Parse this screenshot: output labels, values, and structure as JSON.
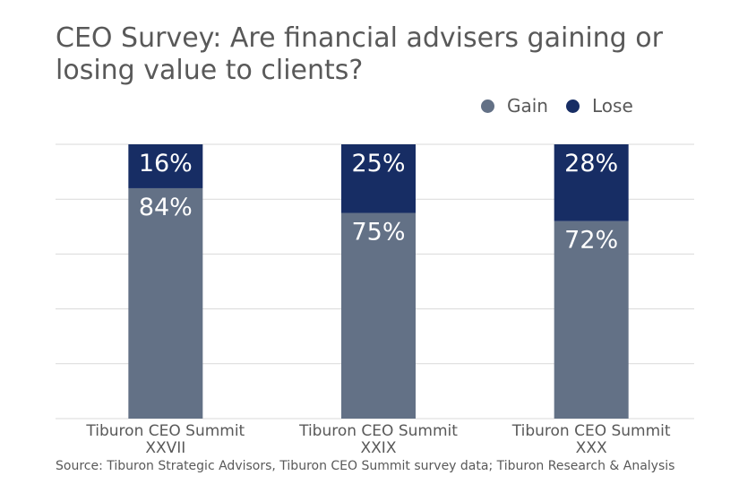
{
  "chart_data": {
    "type": "bar",
    "stacked": true,
    "title": "CEO Survey: Are financial advisers gaining or losing value to clients?",
    "categories": [
      [
        "Tiburon CEO Summit",
        "XXVII"
      ],
      [
        "Tiburon CEO Summit",
        "XXIX"
      ],
      [
        "Tiburon CEO Summit",
        "XXX"
      ]
    ],
    "series": [
      {
        "name": "Gain",
        "values": [
          84,
          75,
          72
        ],
        "labels": [
          "84%",
          "75%",
          "72%"
        ],
        "color": "#637186"
      },
      {
        "name": "Lose",
        "values": [
          16,
          25,
          28
        ],
        "labels": [
          "16%",
          "25%",
          "28%"
        ],
        "color": "#172d64"
      }
    ],
    "ylim": [
      0,
      100
    ],
    "grid": true,
    "legend": "top-right",
    "source": "Source: Tiburon Strategic Advisors, Tiburon CEO Summit survey data; Tiburon Research & Analysis"
  }
}
